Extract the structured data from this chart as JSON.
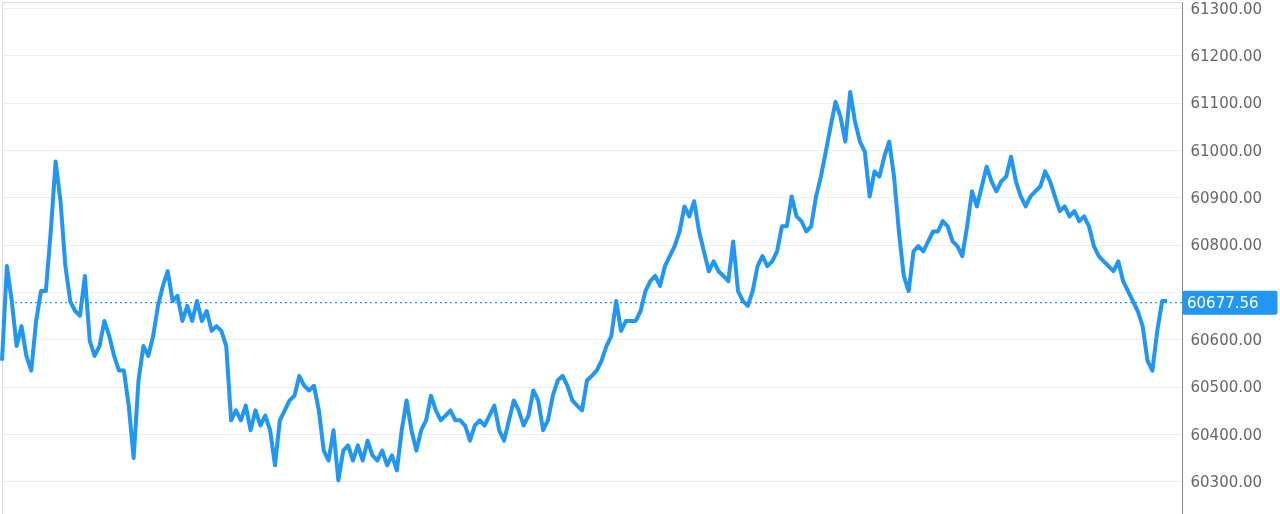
{
  "chart_data": {
    "type": "line",
    "categories": [
      null,
      null,
      null,
      null,
      null,
      null,
      null,
      null,
      null,
      null,
      null,
      null,
      null,
      null,
      null,
      null,
      null,
      null,
      null,
      null,
      null,
      null,
      null,
      null,
      null,
      null,
      null,
      null,
      null,
      null,
      null,
      null,
      null,
      null,
      null,
      null,
      null,
      null,
      null,
      null,
      null,
      null,
      null,
      null,
      null,
      null,
      null,
      null,
      null,
      null,
      null,
      null,
      null,
      null,
      null,
      null,
      null,
      null,
      null,
      null,
      null,
      null,
      null,
      null,
      null,
      null,
      null,
      null,
      null,
      null,
      null,
      null,
      null,
      null,
      null,
      null,
      null,
      null,
      null,
      null,
      null,
      null,
      null,
      null,
      null,
      null,
      null,
      null,
      null,
      null,
      null,
      null,
      null,
      null,
      null,
      null,
      null,
      null,
      null,
      null,
      null,
      null,
      null,
      null,
      null,
      null,
      null,
      null,
      null,
      null,
      null,
      null,
      null,
      null,
      null,
      null,
      null,
      null,
      null,
      null,
      null,
      null,
      null,
      null,
      null,
      null,
      null,
      null,
      null,
      null,
      null,
      null,
      null,
      null,
      null,
      null,
      null,
      null,
      null,
      null,
      null,
      null,
      null,
      null,
      null,
      null,
      null,
      null,
      null,
      null,
      null,
      null,
      null,
      null,
      null,
      null,
      null,
      null,
      null,
      null,
      null,
      null,
      null,
      null,
      null,
      null,
      null,
      null,
      null,
      null,
      null,
      null,
      null,
      null,
      null,
      null,
      null,
      null,
      null,
      null,
      null,
      null,
      null,
      null,
      null,
      null,
      null,
      null,
      null,
      null,
      null,
      null,
      null,
      null,
      null,
      null,
      null,
      null,
      null,
      null,
      null,
      null,
      null,
      null,
      null,
      null,
      null,
      null,
      null,
      null,
      null,
      null,
      null,
      null,
      null,
      null,
      null,
      null,
      null,
      null,
      null,
      null,
      null,
      null,
      null,
      null,
      null,
      null,
      null,
      null,
      null,
      null,
      null,
      null,
      null,
      null,
      null,
      null,
      null,
      null
    ],
    "series": [
      {
        "color": "#2196f3",
        "values": [
          60555,
          60755,
          60681,
          60586,
          60628,
          60565,
          60534,
          60639,
          60702,
          60702,
          60828,
          60976,
          60892,
          60755,
          60681,
          60660,
          60650,
          60734,
          60597,
          60565,
          60586,
          60639,
          60607,
          60565,
          60534,
          60534,
          60460,
          60349,
          60513,
          60586,
          60565,
          60607,
          60671,
          60713,
          60744,
          60681,
          60692,
          60639,
          60671,
          60639,
          60681,
          60639,
          60660,
          60618,
          60628,
          60618,
          60586,
          60429,
          60450,
          60429,
          60460,
          60408,
          60450,
          60418,
          60439,
          60408,
          60334,
          60429,
          60450,
          60471,
          60481,
          60523,
          60502,
          60492,
          60502,
          60450,
          60365,
          60344,
          60408,
          60302,
          60365,
          60376,
          60344,
          60376,
          60344,
          60386,
          60355,
          60344,
          60365,
          60334,
          60355,
          60323,
          60408,
          60471,
          60408,
          60365,
          60408,
          60429,
          60481,
          60450,
          60429,
          60439,
          60450,
          60429,
          60429,
          60418,
          60386,
          60418,
          60429,
          60418,
          60439,
          60460,
          60408,
          60386,
          60429,
          60471,
          60450,
          60418,
          60439,
          60492,
          60471,
          60408,
          60429,
          60481,
          60513,
          60523,
          60502,
          60471,
          60460,
          60450,
          60513,
          60523,
          60534,
          60555,
          60586,
          60607,
          60681,
          60618,
          60639,
          60639,
          60639,
          60660,
          60702,
          60723,
          60734,
          60713,
          60755,
          60776,
          60797,
          60828,
          60881,
          60860,
          60892,
          60828,
          60786,
          60744,
          60765,
          60744,
          60734,
          60723,
          60807,
          60702,
          60681,
          60671,
          60702,
          60755,
          60776,
          60755,
          60765,
          60786,
          60839,
          60839,
          60902,
          60860,
          60850,
          60828,
          60839,
          60902,
          60944,
          60997,
          61050,
          61102,
          61071,
          61018,
          61123,
          61060,
          61018,
          60997,
          60902,
          60955,
          60944,
          60986,
          61018,
          60944,
          60828,
          60734,
          60702,
          60786,
          60797,
          60786,
          60807,
          60828,
          60828,
          60850,
          60839,
          60807,
          60797,
          60776,
          60839,
          60913,
          60881,
          60923,
          60965,
          60934,
          60913,
          60934,
          60944,
          60986,
          60934,
          60902,
          60881,
          60902,
          60913,
          60923,
          60955,
          60934,
          60902,
          60871,
          60881,
          60860,
          60871,
          60850,
          60860,
          60839,
          60797,
          60776,
          60765,
          60755,
          60744,
          60765,
          60723,
          60702,
          60681,
          60660,
          60628,
          60555,
          60534,
          60618,
          60681,
          60681
        ]
      }
    ],
    "ylim": [
      60231,
      61313
    ],
    "yticks": [
      {
        "value": 60300,
        "label": "60300.00"
      },
      {
        "value": 60400,
        "label": "60400.00"
      },
      {
        "value": 60500,
        "label": "60500.00"
      },
      {
        "value": 60600,
        "label": "60600.00"
      },
      {
        "value": 60700,
        "label": null
      },
      {
        "value": 60800,
        "label": "60800.00"
      },
      {
        "value": 60900,
        "label": "60900.00"
      },
      {
        "value": 61000,
        "label": "61000.00"
      },
      {
        "value": 61100,
        "label": "61100.00"
      },
      {
        "value": 61200,
        "label": "61200.00"
      },
      {
        "value": 61300,
        "label": "61300.00"
      }
    ],
    "ref_lines": [
      {
        "axis": "y",
        "value": 60677.56,
        "label": "60677.56",
        "color": "#2196f3",
        "line_style": "dotted"
      }
    ],
    "grid": "y",
    "marker": "none",
    "line_style": "solid"
  }
}
